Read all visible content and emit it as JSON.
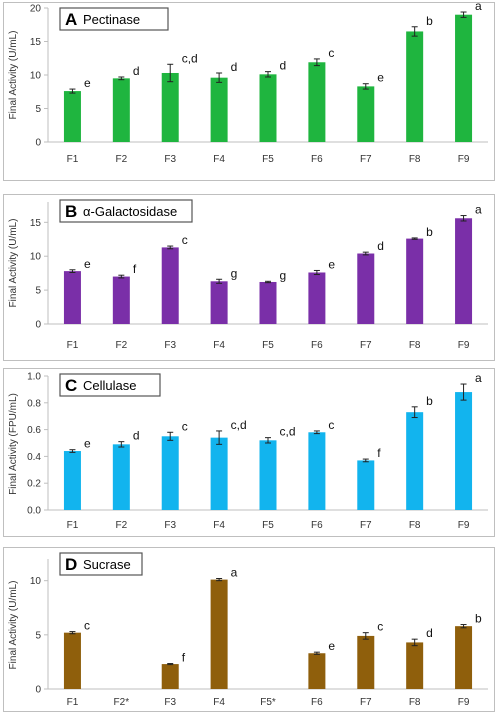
{
  "chart_data": [
    {
      "type": "bar",
      "panel": "A",
      "title": "Pectinase",
      "ylabel": "Final Activity (U/mL)",
      "categories": [
        "F1",
        "F2",
        "F3",
        "F4",
        "F5",
        "F6",
        "F7",
        "F8",
        "F9"
      ],
      "values": [
        7.6,
        9.5,
        10.3,
        9.6,
        10.1,
        11.9,
        8.3,
        16.5,
        19.0
      ],
      "errors": [
        0.3,
        0.2,
        1.3,
        0.7,
        0.4,
        0.5,
        0.4,
        0.7,
        0.4
      ],
      "letters": [
        "e",
        "d",
        "c,d",
        "d",
        "d",
        "c",
        "e",
        "b",
        "a"
      ],
      "ylim": [
        0,
        20
      ],
      "yticks": [
        "0",
        "5",
        "10",
        "15",
        "20"
      ],
      "color": "#1fb53f"
    },
    {
      "type": "bar",
      "panel": "B",
      "title": "α-Galactosidase",
      "ylabel": "Final Activity (U/mL)",
      "categories": [
        "F1",
        "F2",
        "F3",
        "F4",
        "F5",
        "F6",
        "F7",
        "F8",
        "F9"
      ],
      "values": [
        7.8,
        7.0,
        11.3,
        6.3,
        6.2,
        7.6,
        10.4,
        12.6,
        15.6
      ],
      "errors": [
        0.2,
        0.2,
        0.2,
        0.3,
        0.1,
        0.3,
        0.2,
        0.1,
        0.4
      ],
      "letters": [
        "e",
        "f",
        "c",
        "g",
        "g",
        "e",
        "d",
        "b",
        "a"
      ],
      "ylim": [
        0,
        18
      ],
      "yticks": [
        "0",
        "5",
        "10",
        "15"
      ],
      "color": "#7a2fa8"
    },
    {
      "type": "bar",
      "panel": "C",
      "title": "Cellulase",
      "ylabel": "Final Activity (FPU/mL)",
      "categories": [
        "F1",
        "F2",
        "F3",
        "F4",
        "F5",
        "F6",
        "F7",
        "F8",
        "F9"
      ],
      "values": [
        0.44,
        0.49,
        0.55,
        0.54,
        0.52,
        0.58,
        0.37,
        0.73,
        0.88
      ],
      "errors": [
        0.01,
        0.02,
        0.03,
        0.05,
        0.02,
        0.01,
        0.01,
        0.04,
        0.06
      ],
      "letters": [
        "e",
        "d",
        "c",
        "c,d",
        "c,d",
        "c",
        "f",
        "b",
        "a"
      ],
      "ylim": [
        0,
        1.0
      ],
      "yticks": [
        "0.0",
        "0.2",
        "0.4",
        "0.6",
        "0.8",
        "1.0"
      ],
      "color": "#12b4ee"
    },
    {
      "type": "bar",
      "panel": "D",
      "title": "Sucrase",
      "ylabel": "Final Activity (U/mL)",
      "categories": [
        "F1",
        "F2*",
        "F3",
        "F4",
        "F5*",
        "F6",
        "F7",
        "F8",
        "F9"
      ],
      "values": [
        5.2,
        null,
        2.3,
        10.1,
        null,
        3.3,
        4.9,
        4.3,
        5.8
      ],
      "errors": [
        0.1,
        null,
        0.05,
        0.1,
        null,
        0.1,
        0.3,
        0.3,
        0.15
      ],
      "letters": [
        "c",
        "",
        "f",
        "a",
        "",
        "e",
        "c",
        "d",
        "b"
      ],
      "ylim": [
        0,
        12
      ],
      "yticks": [
        "0",
        "5",
        "10"
      ],
      "color": "#8f5f0c"
    }
  ]
}
